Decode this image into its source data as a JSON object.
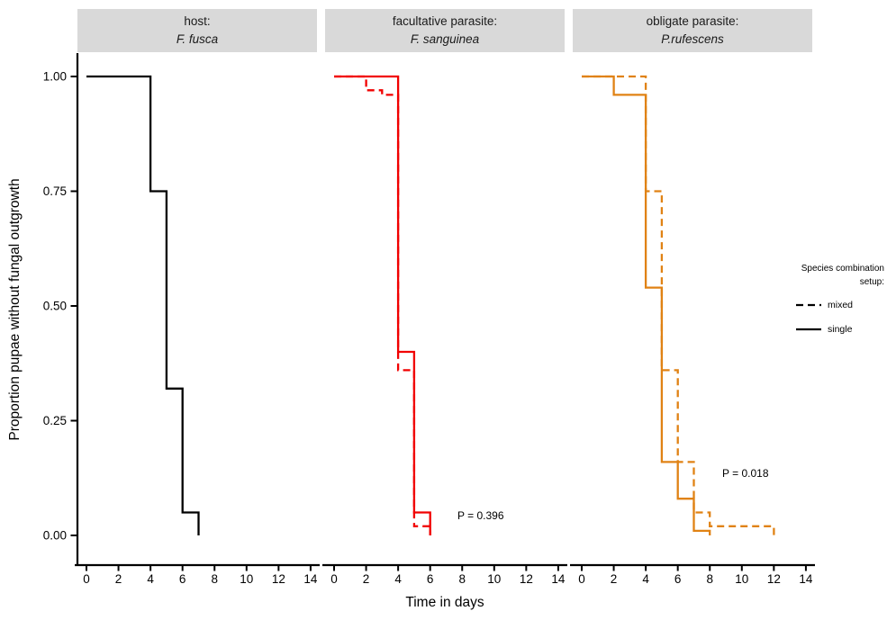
{
  "chart_data": {
    "type": "line",
    "subtype": "kaplan-meier-step-survival",
    "xlabel": "Time in days",
    "ylabel": "Proportion pupae without fungal outgrowth",
    "xlim": [
      0,
      14
    ],
    "ylim": [
      0,
      1
    ],
    "x_ticks": [
      0,
      2,
      4,
      6,
      8,
      10,
      12,
      14
    ],
    "y_ticks": [
      0.0,
      0.25,
      0.5,
      0.75,
      1.0
    ],
    "y_tick_labels": [
      "0.00",
      "0.25",
      "0.50",
      "0.75",
      "1.00"
    ],
    "grid": "off",
    "legend_position": "right",
    "panels": [
      {
        "strip_line1": "host:",
        "strip_line2": "F. fusca",
        "color": "#000000",
        "p_value": "",
        "series": [
          {
            "name": "single",
            "linetype": "solid",
            "points": [
              [
                0,
                1.0
              ],
              [
                4,
                0.75
              ],
              [
                5,
                0.32
              ],
              [
                6,
                0.05
              ],
              [
                7,
                0.0
              ]
            ]
          }
        ]
      },
      {
        "strip_line1": "facultative parasite:",
        "strip_line2": "F. sanguinea",
        "color": "#F10000",
        "p_value": "P = 0.396",
        "series": [
          {
            "name": "mixed",
            "linetype": "dashed",
            "points": [
              [
                0,
                1.0
              ],
              [
                2,
                0.97
              ],
              [
                3,
                0.96
              ],
              [
                4,
                0.36
              ],
              [
                5,
                0.02
              ],
              [
                6,
                0.0
              ]
            ]
          },
          {
            "name": "single",
            "linetype": "solid",
            "points": [
              [
                0,
                1.0
              ],
              [
                4,
                0.4
              ],
              [
                5,
                0.05
              ],
              [
                6,
                0.0
              ]
            ]
          }
        ]
      },
      {
        "strip_line1": "obligate parasite:",
        "strip_line2": "P.rufescens",
        "color": "#E08214",
        "p_value": "P = 0.018",
        "series": [
          {
            "name": "mixed",
            "linetype": "dashed",
            "points": [
              [
                0,
                1.0
              ],
              [
                4,
                0.75
              ],
              [
                5,
                0.36
              ],
              [
                6,
                0.16
              ],
              [
                7,
                0.05
              ],
              [
                8,
                0.02
              ],
              [
                12,
                0.0
              ]
            ]
          },
          {
            "name": "single",
            "linetype": "solid",
            "points": [
              [
                0,
                1.0
              ],
              [
                2,
                0.96
              ],
              [
                4,
                0.54
              ],
              [
                5,
                0.16
              ],
              [
                6,
                0.08
              ],
              [
                7,
                0.01
              ],
              [
                8,
                0.0
              ]
            ]
          }
        ]
      }
    ]
  },
  "legend": {
    "title_line1": "Species combination",
    "title_line2": "setup:",
    "items": [
      {
        "label": "mixed",
        "linetype": "dashed"
      },
      {
        "label": "single",
        "linetype": "solid"
      }
    ]
  }
}
